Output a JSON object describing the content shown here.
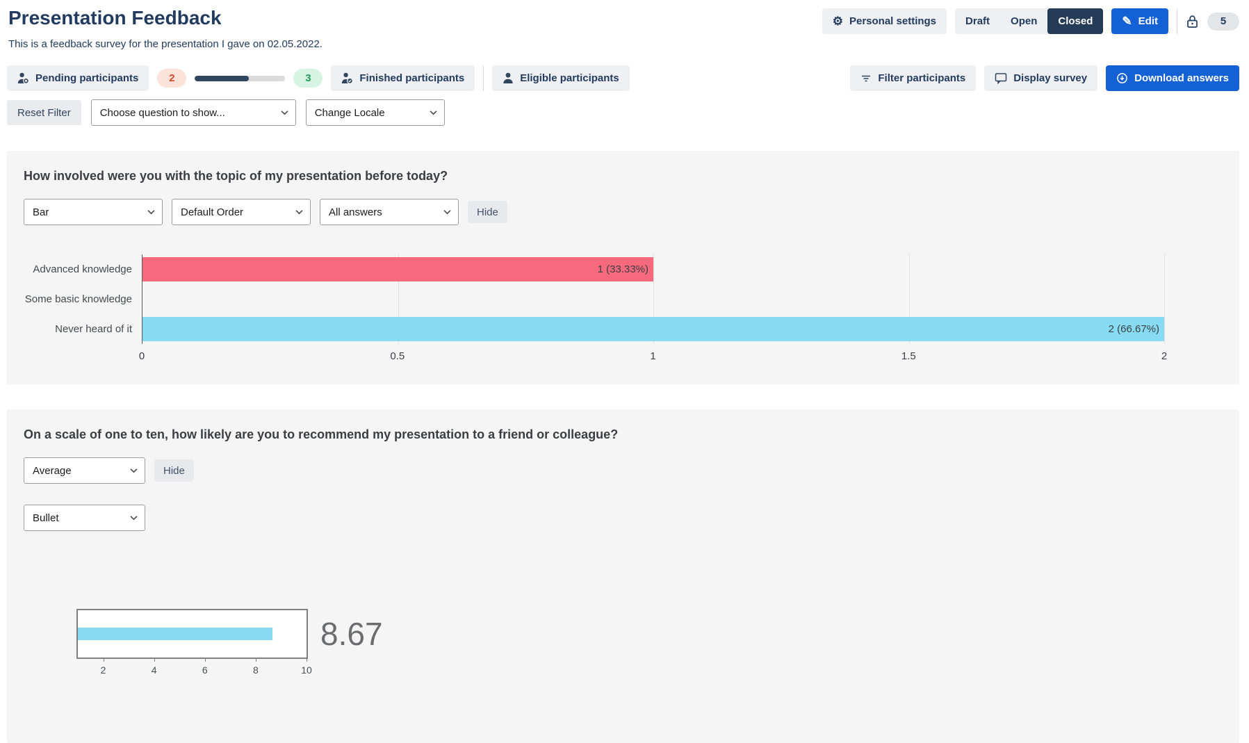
{
  "header": {
    "title": "Presentation Feedback",
    "subtitle": "This is a feedback survey for the presentation I gave on 02.05.2022.",
    "personal_settings_label": "Personal settings",
    "states": [
      {
        "label": "Draft",
        "active": false
      },
      {
        "label": "Open",
        "active": false
      },
      {
        "label": "Closed",
        "active": true
      }
    ],
    "edit_label": "Edit",
    "session_count": "5"
  },
  "icons": {
    "personal_settings": "gear",
    "gear_glyph": "⚙",
    "edit": "pencil",
    "pencil_glyph": "✎",
    "lock": "lock",
    "pending_participants": "person-x",
    "finished_participants": "person-check",
    "eligible_participants": "person",
    "filter_participants": "filter-lines",
    "display_survey": "display",
    "download_answers": "arrow-down-circle",
    "selects": "chevron-down"
  },
  "participants": {
    "pending_label": "Pending participants",
    "pending_count": "2",
    "progress_percent": 60,
    "finished_count": "3",
    "finished_label": "Finished participants",
    "eligible_label": "Eligible participants",
    "filter_label": "Filter participants",
    "display_label": "Display survey",
    "download_label": "Download answers"
  },
  "filter_row": {
    "reset_label": "Reset Filter",
    "question_select_value": "Choose question to show...",
    "locale_select_value": "Change Locale"
  },
  "question1": {
    "title": "How involved were you with the topic of my presentation before today?",
    "chart_type": "Bar",
    "order": "Default Order",
    "answers": "All answers",
    "hide_label": "Hide"
  },
  "question2": {
    "title": "On a scale of one to ten, how likely are you to recommend my presentation to a friend or colleague?",
    "metric": "Average",
    "hide_label": "Hide",
    "visualization": "Bullet",
    "average_value": "8.67"
  },
  "chart_data": [
    {
      "type": "bar",
      "orientation": "horizontal",
      "title": "How involved were you with the topic of my presentation before today?",
      "categories": [
        "Advanced knowledge",
        "Some basic knowledge",
        "Never heard of it"
      ],
      "values": [
        1,
        0,
        2
      ],
      "bar_labels": [
        "1 (33.33%)",
        "",
        "2 (66.67%)"
      ],
      "bar_colors": [
        "#f7697c",
        null,
        "#87dcf3"
      ],
      "x_ticks": [
        "0",
        "0.5",
        "1",
        "1.5",
        "2"
      ],
      "xlim": [
        0,
        2
      ],
      "grid": true,
      "legend": false
    },
    {
      "type": "bullet",
      "title": "On a scale of one to ten, how likely are you to recommend my presentation to a friend or colleague?",
      "metric": "Average",
      "value": 8.67,
      "value_label": "8.67",
      "range": [
        1,
        10
      ],
      "ticks": [
        2,
        4,
        6,
        8,
        10
      ],
      "bar_color": "#87dcf3"
    }
  ],
  "colors": {
    "navy": "#223b5e",
    "accent_blue": "#1461d6",
    "bar_red": "#f7697c",
    "bar_blue": "#87dcf3",
    "pending_badge_bg": "#fbe3da",
    "pending_badge_text": "#d9482f",
    "finished_badge_bg": "#d7f3e3",
    "finished_badge_text": "#1f9e5a",
    "progress_fill": "#31455e",
    "card_bg": "#f5f5f6",
    "state_active_bg": "#253c59"
  }
}
